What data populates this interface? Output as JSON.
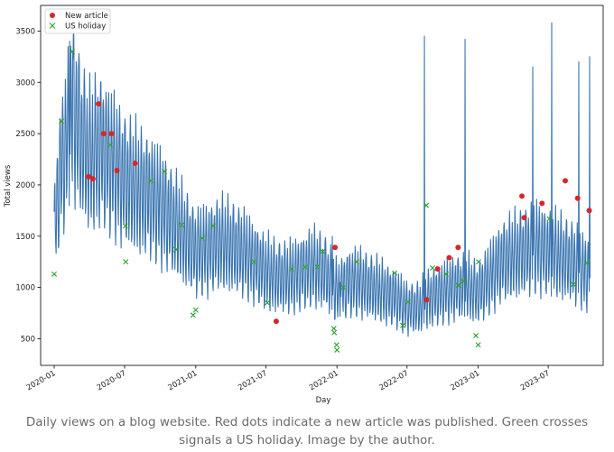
{
  "caption": "Daily views on a blog website. Red dots indicate a new article was published. Green crosses signals a US holiday. Image by the author.",
  "colors": {
    "line": "#3a75b0",
    "article": "#d62728",
    "holiday": "#2ca02c"
  },
  "chart_data": {
    "type": "line",
    "xlabel": "Day",
    "ylabel": "Total views",
    "x_ticks": [
      "2020-01",
      "2020-07",
      "2021-01",
      "2021-07",
      "2022-01",
      "2022-07",
      "2023-01",
      "2023-07"
    ],
    "y_ticks": [
      500,
      1000,
      1500,
      2000,
      2500,
      3000,
      3500
    ],
    "xlim": [
      "2019-11-27",
      "2023-11-20"
    ],
    "ylim": [
      240,
      3750
    ],
    "grid": false,
    "legend": {
      "position": "top-left",
      "entries": [
        {
          "name": "New article",
          "marker": "dot"
        },
        {
          "name": "US holiday",
          "marker": "cross"
        }
      ]
    },
    "series": [
      {
        "name": "Total views",
        "trend": [
          [
            "2020-01-01",
            1500
          ],
          [
            "2020-01-15",
            2100
          ],
          [
            "2020-02-01",
            2400
          ],
          [
            "2020-02-20",
            2750
          ],
          [
            "2020-03-10",
            2450
          ],
          [
            "2020-04-01",
            2250
          ],
          [
            "2020-05-01",
            2350
          ],
          [
            "2020-06-01",
            2200
          ],
          [
            "2020-07-01",
            2050
          ],
          [
            "2020-08-01",
            1950
          ],
          [
            "2020-09-01",
            1900
          ],
          [
            "2020-10-01",
            1800
          ],
          [
            "2020-11-01",
            1650
          ],
          [
            "2020-12-01",
            1500
          ],
          [
            "2021-01-01",
            1350
          ],
          [
            "2021-02-01",
            1380
          ],
          [
            "2021-03-01",
            1430
          ],
          [
            "2021-04-01",
            1400
          ],
          [
            "2021-05-01",
            1350
          ],
          [
            "2021-06-01",
            1250
          ],
          [
            "2021-07-01",
            1150
          ],
          [
            "2021-08-01",
            1100
          ],
          [
            "2021-09-01",
            1100
          ],
          [
            "2021-10-01",
            1150
          ],
          [
            "2021-11-01",
            1200
          ],
          [
            "2021-12-01",
            1150
          ],
          [
            "2022-01-01",
            950
          ],
          [
            "2022-02-01",
            1050
          ],
          [
            "2022-03-01",
            1050
          ],
          [
            "2022-04-01",
            1000
          ],
          [
            "2022-05-01",
            950
          ],
          [
            "2022-06-01",
            900
          ],
          [
            "2022-07-01",
            800
          ],
          [
            "2022-08-01",
            800
          ],
          [
            "2022-09-01",
            900
          ],
          [
            "2022-10-01",
            950
          ],
          [
            "2022-11-01",
            1000
          ],
          [
            "2022-12-01",
            1000
          ],
          [
            "2023-01-01",
            950
          ],
          [
            "2023-02-01",
            1100
          ],
          [
            "2023-03-01",
            1250
          ],
          [
            "2023-04-01",
            1300
          ],
          [
            "2023-05-01",
            1350
          ],
          [
            "2023-06-01",
            1400
          ],
          [
            "2023-07-01",
            1350
          ],
          [
            "2023-08-01",
            1300
          ],
          [
            "2023-09-01",
            1250
          ],
          [
            "2023-10-01",
            1150
          ]
        ],
        "weekly_swing": 0.28,
        "spikes": [
          [
            "2020-02-10",
            3400
          ],
          [
            "2020-02-18",
            3300
          ],
          [
            "2022-08-15",
            3450
          ],
          [
            "2022-11-28",
            3420
          ],
          [
            "2023-05-22",
            3150
          ],
          [
            "2023-07-10",
            3580
          ],
          [
            "2023-09-18",
            3200
          ],
          [
            "2023-10-16",
            3250
          ],
          [
            "2022-01-10",
            1050
          ],
          [
            "2021-12-20",
            1500
          ]
        ]
      }
    ],
    "articles": [
      [
        "2020-03-30",
        2080
      ],
      [
        "2020-04-10",
        2060
      ],
      [
        "2020-04-25",
        2790
      ],
      [
        "2020-05-08",
        2500
      ],
      [
        "2020-05-28",
        2500
      ],
      [
        "2020-06-11",
        2140
      ],
      [
        "2020-07-28",
        2210
      ],
      [
        "2021-07-28",
        670
      ],
      [
        "2021-12-27",
        1390
      ],
      [
        "2022-08-21",
        880
      ],
      [
        "2022-09-18",
        1180
      ],
      [
        "2022-10-18",
        1290
      ],
      [
        "2022-11-10",
        1390
      ],
      [
        "2023-04-24",
        1890
      ],
      [
        "2023-04-30",
        1680
      ],
      [
        "2023-06-15",
        1820
      ],
      [
        "2023-08-14",
        2040
      ],
      [
        "2023-09-15",
        1870
      ],
      [
        "2023-10-15",
        1750
      ]
    ],
    "holidays": [
      [
        "2020-01-01",
        1130
      ],
      [
        "2020-01-20",
        2620
      ],
      [
        "2020-02-17",
        3300
      ],
      [
        "2020-05-25",
        2390
      ],
      [
        "2020-07-03",
        1600
      ],
      [
        "2020-07-04",
        1250
      ],
      [
        "2020-09-07",
        2040
      ],
      [
        "2020-10-12",
        2130
      ],
      [
        "2020-11-11",
        1370
      ],
      [
        "2020-11-26",
        1610
      ],
      [
        "2020-12-25",
        730
      ],
      [
        "2021-01-01",
        780
      ],
      [
        "2021-01-18",
        1480
      ],
      [
        "2021-02-15",
        1600
      ],
      [
        "2021-05-31",
        1250
      ],
      [
        "2021-07-05",
        850
      ],
      [
        "2021-09-06",
        1180
      ],
      [
        "2021-10-11",
        1200
      ],
      [
        "2021-11-11",
        1200
      ],
      [
        "2021-11-25",
        1350
      ],
      [
        "2021-12-24",
        600
      ],
      [
        "2021-12-25",
        560
      ],
      [
        "2021-12-31",
        440
      ],
      [
        "2022-01-01",
        390
      ],
      [
        "2022-01-17",
        1000
      ],
      [
        "2022-02-21",
        1250
      ],
      [
        "2022-05-30",
        1140
      ],
      [
        "2022-06-20",
        630
      ],
      [
        "2022-07-04",
        860
      ],
      [
        "2022-08-20",
        1800
      ],
      [
        "2022-09-05",
        1190
      ],
      [
        "2022-10-10",
        1130
      ],
      [
        "2022-11-11",
        1020
      ],
      [
        "2022-11-24",
        1060
      ],
      [
        "2022-12-26",
        530
      ],
      [
        "2023-01-02",
        1250
      ],
      [
        "2023-01-01",
        440
      ],
      [
        "2023-07-04",
        1670
      ],
      [
        "2023-09-04",
        1030
      ],
      [
        "2023-10-09",
        1240
      ]
    ]
  }
}
